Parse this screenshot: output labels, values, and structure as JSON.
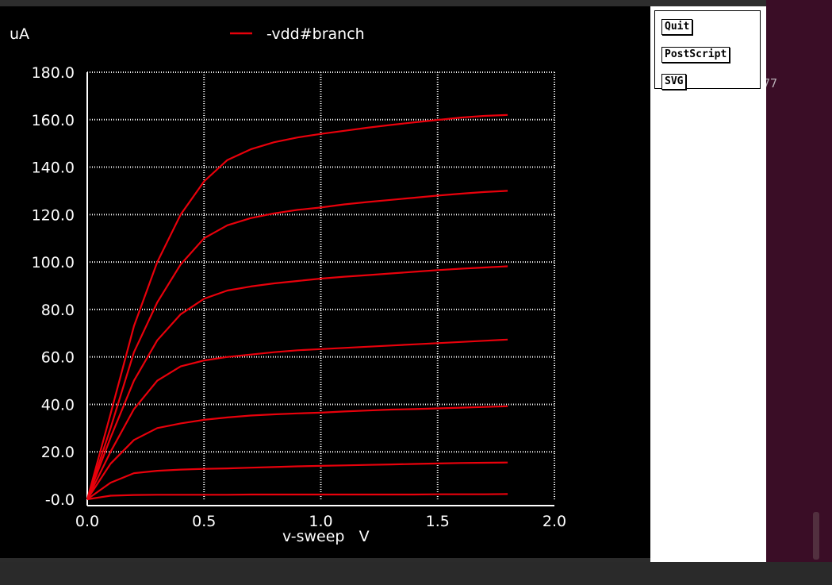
{
  "controls": {
    "quit_label": "Quit",
    "postscript_label": "PostScript",
    "svg_label": "SVG"
  },
  "terminal": {
    "partial_text": "77"
  },
  "chart_data": {
    "type": "line",
    "title": "",
    "xlabel": "v-sweep   V",
    "ylabel": "uA",
    "xlim": [
      0.0,
      2.0
    ],
    "ylim": [
      0.0,
      180.0
    ],
    "x_ticks": [
      "0.0",
      "0.5",
      "1.0",
      "1.5",
      "2.0"
    ],
    "y_ticks": [
      "-0.0",
      "20.0",
      "40.0",
      "60.0",
      "80.0",
      "100.0",
      "120.0",
      "140.0",
      "160.0",
      "180.0"
    ],
    "grid": true,
    "legend": {
      "position": "top",
      "entries": [
        "-vdd#branch"
      ]
    },
    "colors": {
      "series": "#e8000b",
      "background": "#000000",
      "axis": "#ffffff",
      "grid": "#ffffff"
    },
    "x": [
      0.0,
      0.1,
      0.2,
      0.3,
      0.4,
      0.5,
      0.6,
      0.7,
      0.8,
      0.9,
      1.0,
      1.1,
      1.2,
      1.3,
      1.4,
      1.5,
      1.6,
      1.7,
      1.8
    ],
    "series": [
      {
        "values": [
          0,
          1.5,
          1.8,
          1.9,
          1.9,
          1.9,
          1.9,
          2.0,
          2.0,
          2.0,
          2.0,
          2.0,
          2.0,
          2.0,
          2.0,
          2.1,
          2.1,
          2.1,
          2.2
        ]
      },
      {
        "values": [
          0,
          7,
          11,
          12,
          12.5,
          12.8,
          13,
          13.3,
          13.6,
          13.9,
          14.1,
          14.3,
          14.5,
          14.7,
          14.9,
          15.1,
          15.3,
          15.4,
          15.5
        ]
      },
      {
        "values": [
          0,
          15,
          25,
          30,
          32,
          33.5,
          34.5,
          35.3,
          35.8,
          36.2,
          36.5,
          37,
          37.4,
          37.8,
          38,
          38.3,
          38.6,
          38.9,
          39.2
        ]
      },
      {
        "values": [
          0,
          20,
          38,
          50,
          56,
          58.5,
          60,
          61,
          62,
          62.8,
          63.3,
          63.8,
          64.3,
          64.8,
          65.3,
          65.8,
          66.3,
          66.8,
          67.3
        ]
      },
      {
        "values": [
          0,
          26,
          50,
          67,
          78,
          84.5,
          88,
          89.7,
          91,
          92,
          93,
          93.8,
          94.5,
          95.2,
          95.9,
          96.6,
          97.2,
          97.7,
          98.2
        ]
      },
      {
        "values": [
          0,
          30,
          62,
          83,
          99,
          110,
          115.5,
          118.5,
          120.5,
          122,
          123,
          124.3,
          125.3,
          126.2,
          127.1,
          128,
          128.8,
          129.5,
          130
        ]
      },
      {
        "values": [
          0,
          36,
          73,
          100,
          120,
          134,
          143,
          147.5,
          150.5,
          152.5,
          154,
          155.3,
          156.6,
          157.8,
          158.9,
          159.9,
          160.9,
          161.6,
          162
        ]
      }
    ]
  }
}
